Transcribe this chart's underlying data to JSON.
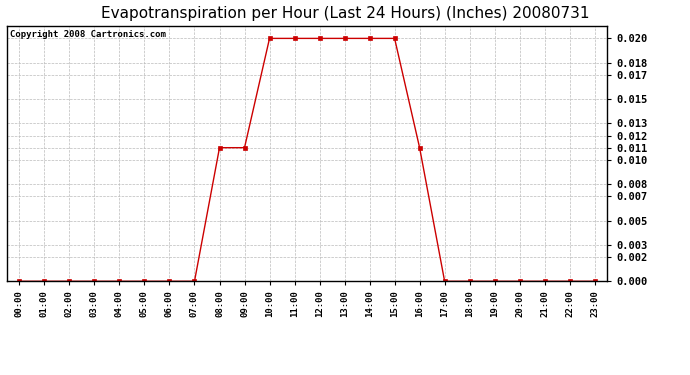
{
  "title": "Evapotranspiration per Hour (Last 24 Hours) (Inches) 20080731",
  "copyright": "Copyright 2008 Cartronics.com",
  "x_labels": [
    "00:00",
    "01:00",
    "02:00",
    "03:00",
    "04:00",
    "05:00",
    "06:00",
    "07:00",
    "08:00",
    "09:00",
    "10:00",
    "11:00",
    "12:00",
    "13:00",
    "14:00",
    "15:00",
    "16:00",
    "17:00",
    "18:00",
    "19:00",
    "20:00",
    "21:00",
    "22:00",
    "23:00"
  ],
  "y_values": [
    0.0,
    0.0,
    0.0,
    0.0,
    0.0,
    0.0,
    0.0,
    0.0,
    0.011,
    0.011,
    0.02,
    0.02,
    0.02,
    0.02,
    0.02,
    0.02,
    0.011,
    0.0,
    0.0,
    0.0,
    0.0,
    0.0,
    0.0,
    0.0
  ],
  "line_color": "#cc0000",
  "marker": "s",
  "marker_size": 2.5,
  "background_color": "#ffffff",
  "plot_bg_color": "#ffffff",
  "grid_color": "#bbbbbb",
  "ylim": [
    0.0,
    0.021
  ],
  "yticks": [
    0.0,
    0.002,
    0.003,
    0.005,
    0.007,
    0.008,
    0.01,
    0.011,
    0.012,
    0.013,
    0.015,
    0.017,
    0.018,
    0.02
  ],
  "title_fontsize": 11,
  "copyright_fontsize": 6.5,
  "tick_fontsize": 7.5,
  "xtick_fontsize": 6.5
}
